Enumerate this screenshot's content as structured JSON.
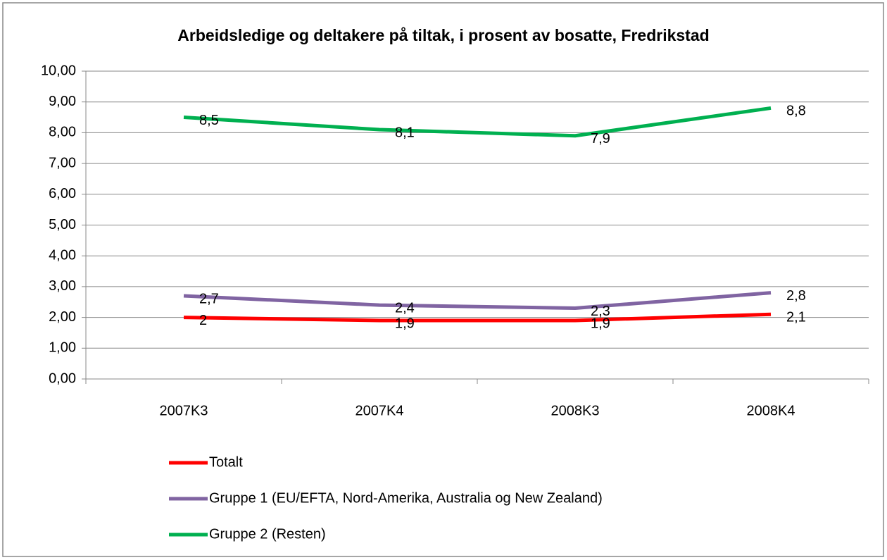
{
  "chart_data": {
    "type": "line",
    "title": "Arbeidsledige og deltakere på tiltak, i prosent av bosatte, Fredrikstad",
    "categories": [
      "2007K3",
      "2007K4",
      "2008K3",
      "2008K4"
    ],
    "series": [
      {
        "name": "Totalt",
        "color": "#ff0000",
        "values": [
          2,
          1.9,
          1.9,
          2.1
        ],
        "value_labels": [
          "2",
          "1,9",
          "1,9",
          "2,1"
        ]
      },
      {
        "name": "Gruppe 1 (EU/EFTA, Nord-Amerika, Australia og New Zealand)",
        "color": "#8064a2",
        "values": [
          2.7,
          2.4,
          2.3,
          2.8
        ],
        "value_labels": [
          "2,7",
          "2,4",
          "2,3",
          "2,8"
        ]
      },
      {
        "name": "Gruppe 2 (Resten)",
        "color": "#00b050",
        "values": [
          8.5,
          8.1,
          7.9,
          8.8
        ],
        "value_labels": [
          "8,5",
          "8,1",
          "7,9",
          "8,8"
        ]
      }
    ],
    "ylim": [
      0,
      10
    ],
    "yticks": [
      {
        "value": 0,
        "label": "0,00"
      },
      {
        "value": 1,
        "label": "1,00"
      },
      {
        "value": 2,
        "label": "2,00"
      },
      {
        "value": 3,
        "label": "3,00"
      },
      {
        "value": 4,
        "label": "4,00"
      },
      {
        "value": 5,
        "label": "5,00"
      },
      {
        "value": 6,
        "label": "6,00"
      },
      {
        "value": 7,
        "label": "7,00"
      },
      {
        "value": 8,
        "label": "8,00"
      },
      {
        "value": 9,
        "label": "9,00"
      },
      {
        "value": 10,
        "label": "10,00"
      }
    ],
    "grid": true
  }
}
